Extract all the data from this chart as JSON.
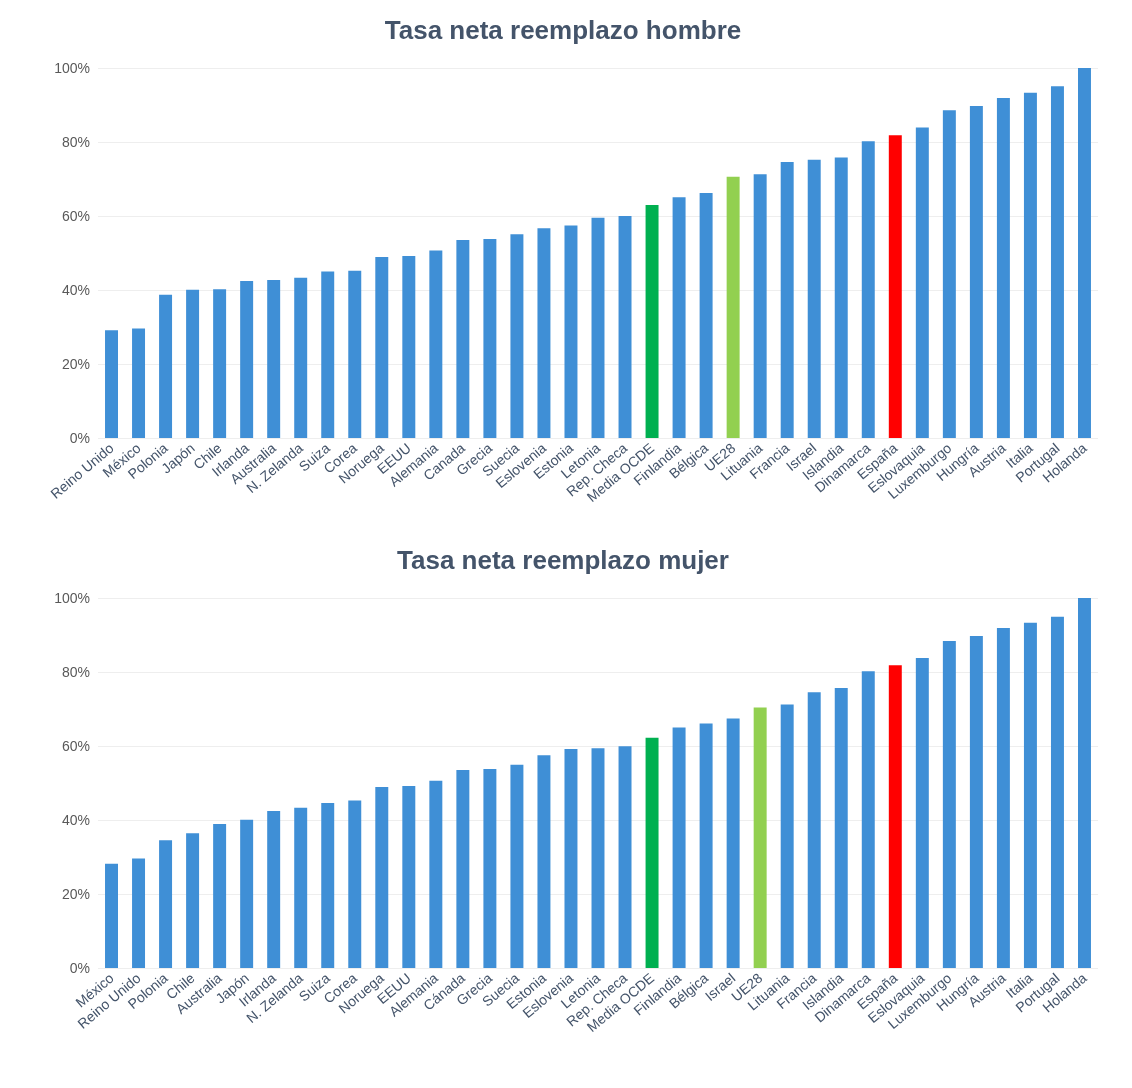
{
  "chart_data": [
    {
      "type": "bar",
      "title": "Tasa neta reemplazo hombre",
      "categories": [
        "Reino Unido",
        "México",
        "Polonia",
        "Japón",
        "Chile",
        "Irlanda",
        "Australia",
        "N. Zelanda",
        "Suiza",
        "Corea",
        "Noruega",
        "EEUU",
        "Alemania",
        "Canada",
        "Grecia",
        "Suecia",
        "Eslovenia",
        "Estonia",
        "Letonia",
        "Rep. Checa",
        "Media OCDE",
        "Finlandia",
        "Bélgica",
        "UE28",
        "Lituania",
        "Francia",
        "Israel",
        "Islandia",
        "Dinamarca",
        "España",
        "Eslovaquia",
        "Luxemburgo",
        "Hungría",
        "Austria",
        "Italia",
        "Portugal",
        "Holanda"
      ],
      "values": [
        29.1,
        29.6,
        38.7,
        40.1,
        40.2,
        42.4,
        42.7,
        43.3,
        45.0,
        45.2,
        48.9,
        49.2,
        50.7,
        53.5,
        53.8,
        55.1,
        56.7,
        57.4,
        59.5,
        60.0,
        63.0,
        65.1,
        66.2,
        70.6,
        71.3,
        74.6,
        75.2,
        75.8,
        80.2,
        81.8,
        83.9,
        88.6,
        89.7,
        91.9,
        93.3,
        95.1,
        100
      ],
      "colors": [
        "#3f8fd6",
        "#3f8fd6",
        "#3f8fd6",
        "#3f8fd6",
        "#3f8fd6",
        "#3f8fd6",
        "#3f8fd6",
        "#3f8fd6",
        "#3f8fd6",
        "#3f8fd6",
        "#3f8fd6",
        "#3f8fd6",
        "#3f8fd6",
        "#3f8fd6",
        "#3f8fd6",
        "#3f8fd6",
        "#3f8fd6",
        "#3f8fd6",
        "#3f8fd6",
        "#3f8fd6",
        "#00b050",
        "#3f8fd6",
        "#3f8fd6",
        "#92d050",
        "#3f8fd6",
        "#3f8fd6",
        "#3f8fd6",
        "#3f8fd6",
        "#3f8fd6",
        "#ff0000",
        "#3f8fd6",
        "#3f8fd6",
        "#3f8fd6",
        "#3f8fd6",
        "#3f8fd6",
        "#3f8fd6",
        "#3f8fd6"
      ],
      "ylim": [
        0,
        100
      ],
      "yticks": [
        {
          "value": 0,
          "label": "0%"
        },
        {
          "value": 20,
          "label": "20%"
        },
        {
          "value": 40,
          "label": "40%"
        },
        {
          "value": 60,
          "label": "60%"
        },
        {
          "value": 80,
          "label": "80%"
        },
        {
          "value": 100,
          "label": "100%"
        }
      ],
      "grid": "y"
    },
    {
      "type": "bar",
      "title": "Tasa neta reemplazo mujer",
      "categories": [
        "México",
        "Reino Unido",
        "Polonia",
        "Chile",
        "Australia",
        "Japón",
        "Irlanda",
        "N. Zelanda",
        "Suiza",
        "Corea",
        "Noruega",
        "EEUU",
        "Alemania",
        "Cánada",
        "Grecia",
        "Suecia",
        "Estonia",
        "Eslovenia",
        "Letonia",
        "Rep. Checa",
        "Media OCDE",
        "Finlandia",
        "Bélgica",
        "Israel",
        "UE28",
        "Lituania",
        "Francia",
        "Islandia",
        "Dinamarca",
        "España",
        "Eslovaquia",
        "Luxemburgo",
        "Hungría",
        "Austria",
        "Italia",
        "Portugal",
        "Holanda"
      ],
      "values": [
        28.2,
        29.6,
        34.5,
        36.4,
        38.9,
        40.1,
        42.4,
        43.3,
        44.6,
        45.3,
        48.9,
        49.2,
        50.6,
        53.5,
        53.8,
        54.9,
        57.5,
        59.2,
        59.4,
        59.9,
        62.2,
        65.0,
        66.1,
        67.4,
        70.4,
        71.2,
        74.5,
        75.7,
        80.2,
        81.8,
        83.8,
        88.4,
        89.7,
        91.9,
        93.3,
        94.9,
        100
      ],
      "colors": [
        "#3f8fd6",
        "#3f8fd6",
        "#3f8fd6",
        "#3f8fd6",
        "#3f8fd6",
        "#3f8fd6",
        "#3f8fd6",
        "#3f8fd6",
        "#3f8fd6",
        "#3f8fd6",
        "#3f8fd6",
        "#3f8fd6",
        "#3f8fd6",
        "#3f8fd6",
        "#3f8fd6",
        "#3f8fd6",
        "#3f8fd6",
        "#3f8fd6",
        "#3f8fd6",
        "#3f8fd6",
        "#00b050",
        "#3f8fd6",
        "#3f8fd6",
        "#3f8fd6",
        "#92d050",
        "#3f8fd6",
        "#3f8fd6",
        "#3f8fd6",
        "#3f8fd6",
        "#ff0000",
        "#3f8fd6",
        "#3f8fd6",
        "#3f8fd6",
        "#3f8fd6",
        "#3f8fd6",
        "#3f8fd6",
        "#3f8fd6"
      ],
      "ylim": [
        0,
        100
      ],
      "yticks": [
        {
          "value": 0,
          "label": "0%"
        },
        {
          "value": 20,
          "label": "20%"
        },
        {
          "value": 40,
          "label": "40%"
        },
        {
          "value": 60,
          "label": "60%"
        },
        {
          "value": 80,
          "label": "80%"
        },
        {
          "value": 100,
          "label": "100%"
        }
      ],
      "grid": "y"
    }
  ]
}
